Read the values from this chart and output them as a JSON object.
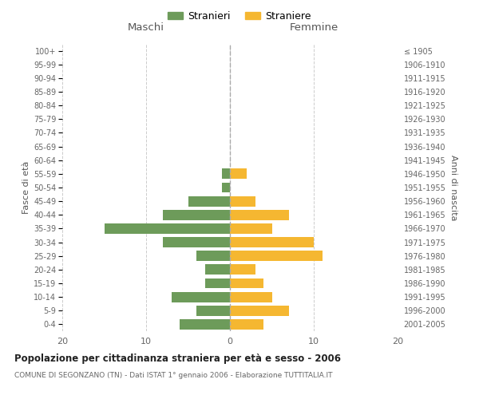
{
  "age_groups": [
    "0-4",
    "5-9",
    "10-14",
    "15-19",
    "20-24",
    "25-29",
    "30-34",
    "35-39",
    "40-44",
    "45-49",
    "50-54",
    "55-59",
    "60-64",
    "65-69",
    "70-74",
    "75-79",
    "80-84",
    "85-89",
    "90-94",
    "95-99",
    "100+"
  ],
  "birth_years": [
    "2001-2005",
    "1996-2000",
    "1991-1995",
    "1986-1990",
    "1981-1985",
    "1976-1980",
    "1971-1975",
    "1966-1970",
    "1961-1965",
    "1956-1960",
    "1951-1955",
    "1946-1950",
    "1941-1945",
    "1936-1940",
    "1931-1935",
    "1926-1930",
    "1921-1925",
    "1916-1920",
    "1911-1915",
    "1906-1910",
    "≤ 1905"
  ],
  "males": [
    6,
    4,
    7,
    3,
    3,
    4,
    8,
    15,
    8,
    5,
    1,
    1,
    0,
    0,
    0,
    0,
    0,
    0,
    0,
    0,
    0
  ],
  "females": [
    4,
    7,
    5,
    4,
    3,
    11,
    10,
    5,
    7,
    3,
    0,
    2,
    0,
    0,
    0,
    0,
    0,
    0,
    0,
    0,
    0
  ],
  "male_color": "#6d9b5a",
  "female_color": "#f5b731",
  "background_color": "#ffffff",
  "grid_color": "#cccccc",
  "title": "Popolazione per cittadinanza straniera per età e sesso - 2006",
  "subtitle": "COMUNE DI SEGONZANO (TN) - Dati ISTAT 1° gennaio 2006 - Elaborazione TUTTITALIA.IT",
  "left_label": "Maschi",
  "right_label": "Femmine",
  "ylabel_left": "Fasce di età",
  "ylabel_right": "Anni di nascita",
  "legend_male": "Stranieri",
  "legend_female": "Straniere",
  "xlim": 20
}
